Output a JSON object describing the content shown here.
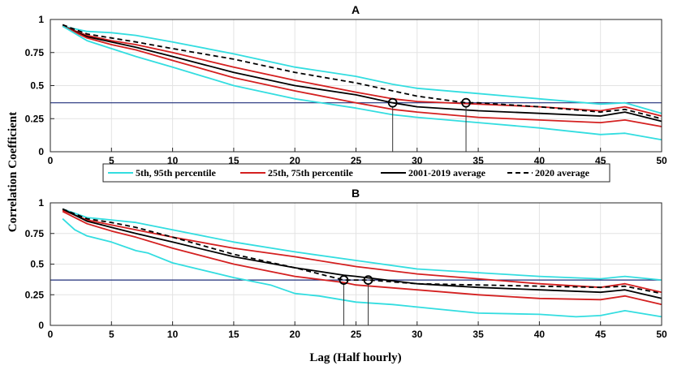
{
  "figure": {
    "ylabel": "Correlation Coefficient",
    "xlabel": "Lag (Half hourly)",
    "threshold": 0.37
  },
  "legend": [
    {
      "label": "5th, 95th percentile",
      "color": "#33dde0",
      "dash": "solid"
    },
    {
      "label": "25th, 75th percentile",
      "color": "#d42020",
      "dash": "solid"
    },
    {
      "label": "2001-2019 average",
      "color": "#000000",
      "dash": "solid"
    },
    {
      "label": "2020 average",
      "color": "#000000",
      "dash": "dashed"
    }
  ],
  "chart_data": [
    {
      "type": "line",
      "title": "A",
      "xlim": [
        0,
        50
      ],
      "ylim": [
        0,
        1
      ],
      "xticks": [
        0,
        5,
        10,
        15,
        20,
        25,
        30,
        35,
        40,
        45,
        50
      ],
      "yticks": [
        "0",
        "0.25",
        "0.5",
        "0.75",
        "1"
      ],
      "grid": true,
      "threshold_color": "#1f2e7a",
      "series": [
        {
          "name": "95th percentile",
          "color": "#33dde0",
          "dash": false,
          "points": [
            [
              1,
              0.95
            ],
            [
              3,
              0.91
            ],
            [
              5,
              0.9
            ],
            [
              7,
              0.88
            ],
            [
              10,
              0.83
            ],
            [
              15,
              0.74
            ],
            [
              20,
              0.64
            ],
            [
              25,
              0.57
            ],
            [
              28,
              0.51
            ],
            [
              30,
              0.48
            ],
            [
              35,
              0.44
            ],
            [
              40,
              0.4
            ],
            [
              45,
              0.36
            ],
            [
              47,
              0.37
            ],
            [
              50,
              0.29
            ]
          ]
        },
        {
          "name": "75th percentile",
          "color": "#d42020",
          "dash": false,
          "points": [
            [
              1,
              0.95
            ],
            [
              3,
              0.88
            ],
            [
              5,
              0.84
            ],
            [
              7,
              0.81
            ],
            [
              10,
              0.75
            ],
            [
              15,
              0.64
            ],
            [
              20,
              0.54
            ],
            [
              25,
              0.45
            ],
            [
              28,
              0.4
            ],
            [
              30,
              0.38
            ],
            [
              35,
              0.36
            ],
            [
              40,
              0.34
            ],
            [
              45,
              0.31
            ],
            [
              47,
              0.34
            ],
            [
              50,
              0.27
            ]
          ]
        },
        {
          "name": "2001-2019 average",
          "color": "#000000",
          "dash": false,
          "points": [
            [
              1,
              0.95
            ],
            [
              3,
              0.87
            ],
            [
              5,
              0.83
            ],
            [
              7,
              0.79
            ],
            [
              10,
              0.72
            ],
            [
              15,
              0.6
            ],
            [
              20,
              0.5
            ],
            [
              25,
              0.43
            ],
            [
              28,
              0.37
            ],
            [
              30,
              0.34
            ],
            [
              35,
              0.31
            ],
            [
              40,
              0.29
            ],
            [
              45,
              0.27
            ],
            [
              47,
              0.3
            ],
            [
              50,
              0.23
            ]
          ]
        },
        {
          "name": "25th percentile",
          "color": "#d42020",
          "dash": false,
          "points": [
            [
              1,
              0.95
            ],
            [
              3,
              0.86
            ],
            [
              5,
              0.81
            ],
            [
              7,
              0.77
            ],
            [
              10,
              0.69
            ],
            [
              15,
              0.56
            ],
            [
              20,
              0.46
            ],
            [
              25,
              0.37
            ],
            [
              28,
              0.32
            ],
            [
              30,
              0.3
            ],
            [
              35,
              0.26
            ],
            [
              40,
              0.24
            ],
            [
              45,
              0.22
            ],
            [
              47,
              0.24
            ],
            [
              50,
              0.19
            ]
          ]
        },
        {
          "name": "5th percentile",
          "color": "#33dde0",
          "dash": false,
          "points": [
            [
              1,
              0.95
            ],
            [
              3,
              0.84
            ],
            [
              5,
              0.78
            ],
            [
              7,
              0.72
            ],
            [
              10,
              0.64
            ],
            [
              15,
              0.5
            ],
            [
              20,
              0.4
            ],
            [
              25,
              0.33
            ],
            [
              28,
              0.28
            ],
            [
              30,
              0.26
            ],
            [
              35,
              0.22
            ],
            [
              40,
              0.18
            ],
            [
              45,
              0.13
            ],
            [
              47,
              0.14
            ],
            [
              50,
              0.09
            ]
          ]
        },
        {
          "name": "2020 average",
          "color": "#000000",
          "dash": true,
          "points": [
            [
              1,
              0.96
            ],
            [
              3,
              0.89
            ],
            [
              5,
              0.86
            ],
            [
              7,
              0.83
            ],
            [
              10,
              0.78
            ],
            [
              15,
              0.7
            ],
            [
              20,
              0.6
            ],
            [
              25,
              0.52
            ],
            [
              28,
              0.46
            ],
            [
              30,
              0.42
            ],
            [
              34,
              0.37
            ],
            [
              35,
              0.37
            ],
            [
              40,
              0.34
            ],
            [
              45,
              0.3
            ],
            [
              47,
              0.32
            ],
            [
              50,
              0.25
            ]
          ]
        }
      ],
      "markers": [
        {
          "x": 28,
          "y": 0.37
        },
        {
          "x": 34,
          "y": 0.37
        }
      ]
    },
    {
      "type": "line",
      "title": "B",
      "xlim": [
        0,
        50
      ],
      "ylim": [
        0,
        1
      ],
      "xticks": [
        0,
        5,
        10,
        15,
        20,
        25,
        30,
        35,
        40,
        45,
        50
      ],
      "yticks": [
        "0",
        "0.25",
        "0.5",
        "0.75",
        "1"
      ],
      "grid": true,
      "threshold_color": "#1f2e7a",
      "series": [
        {
          "name": "95th percentile",
          "color": "#33dde0",
          "dash": false,
          "points": [
            [
              1,
              0.95
            ],
            [
              3,
              0.88
            ],
            [
              5,
              0.86
            ],
            [
              7,
              0.84
            ],
            [
              10,
              0.78
            ],
            [
              15,
              0.68
            ],
            [
              20,
              0.6
            ],
            [
              25,
              0.53
            ],
            [
              30,
              0.46
            ],
            [
              35,
              0.43
            ],
            [
              40,
              0.4
            ],
            [
              45,
              0.38
            ],
            [
              47,
              0.4
            ],
            [
              50,
              0.37
            ]
          ]
        },
        {
          "name": "75th percentile",
          "color": "#d42020",
          "dash": false,
          "points": [
            [
              1,
              0.94
            ],
            [
              3,
              0.86
            ],
            [
              5,
              0.82
            ],
            [
              7,
              0.78
            ],
            [
              10,
              0.72
            ],
            [
              15,
              0.63
            ],
            [
              20,
              0.56
            ],
            [
              25,
              0.48
            ],
            [
              30,
              0.42
            ],
            [
              35,
              0.38
            ],
            [
              40,
              0.34
            ],
            [
              45,
              0.31
            ],
            [
              47,
              0.34
            ],
            [
              50,
              0.27
            ]
          ]
        },
        {
          "name": "2020 average",
          "color": "#000000",
          "dash": true,
          "points": [
            [
              1,
              0.95
            ],
            [
              3,
              0.87
            ],
            [
              5,
              0.84
            ],
            [
              7,
              0.8
            ],
            [
              10,
              0.72
            ],
            [
              15,
              0.58
            ],
            [
              20,
              0.47
            ],
            [
              24,
              0.37
            ],
            [
              26,
              0.37
            ],
            [
              30,
              0.34
            ],
            [
              35,
              0.33
            ],
            [
              40,
              0.32
            ],
            [
              45,
              0.31
            ],
            [
              47,
              0.32
            ],
            [
              50,
              0.26
            ]
          ]
        },
        {
          "name": "2001-2019 average",
          "color": "#000000",
          "dash": false,
          "points": [
            [
              1,
              0.95
            ],
            [
              3,
              0.85
            ],
            [
              5,
              0.8
            ],
            [
              7,
              0.75
            ],
            [
              10,
              0.68
            ],
            [
              15,
              0.56
            ],
            [
              20,
              0.47
            ],
            [
              24,
              0.41
            ],
            [
              25,
              0.4
            ],
            [
              30,
              0.34
            ],
            [
              35,
              0.31
            ],
            [
              40,
              0.29
            ],
            [
              45,
              0.27
            ],
            [
              47,
              0.29
            ],
            [
              50,
              0.22
            ]
          ]
        },
        {
          "name": "25th percentile",
          "color": "#d42020",
          "dash": false,
          "points": [
            [
              1,
              0.93
            ],
            [
              3,
              0.83
            ],
            [
              5,
              0.77
            ],
            [
              7,
              0.72
            ],
            [
              10,
              0.63
            ],
            [
              15,
              0.5
            ],
            [
              20,
              0.4
            ],
            [
              24,
              0.35
            ],
            [
              25,
              0.33
            ],
            [
              30,
              0.29
            ],
            [
              35,
              0.25
            ],
            [
              40,
              0.22
            ],
            [
              45,
              0.21
            ],
            [
              47,
              0.24
            ],
            [
              50,
              0.17
            ]
          ]
        },
        {
          "name": "5th percentile",
          "color": "#33dde0",
          "dash": false,
          "points": [
            [
              1,
              0.87
            ],
            [
              2,
              0.78
            ],
            [
              3,
              0.73
            ],
            [
              5,
              0.68
            ],
            [
              7,
              0.61
            ],
            [
              8,
              0.59
            ],
            [
              10,
              0.51
            ],
            [
              15,
              0.39
            ],
            [
              18,
              0.33
            ],
            [
              20,
              0.26
            ],
            [
              22,
              0.24
            ],
            [
              25,
              0.19
            ],
            [
              28,
              0.17
            ],
            [
              30,
              0.15
            ],
            [
              35,
              0.1
            ],
            [
              40,
              0.09
            ],
            [
              43,
              0.07
            ],
            [
              45,
              0.08
            ],
            [
              47,
              0.12
            ],
            [
              50,
              0.07
            ]
          ]
        }
      ],
      "markers": [
        {
          "x": 24,
          "y": 0.37
        },
        {
          "x": 26,
          "y": 0.37
        }
      ]
    }
  ]
}
